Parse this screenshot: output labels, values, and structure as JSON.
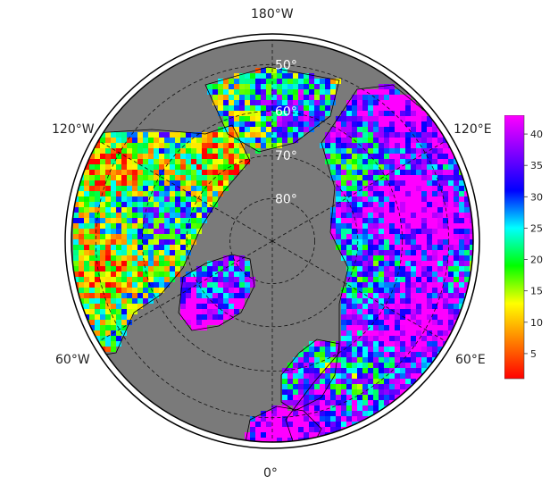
{
  "map": {
    "projection": "north-polar-stereographic",
    "ocean_color": "#7a7a7a",
    "border_color": "#000000",
    "grid_style": "dashed",
    "longitude_labels": {
      "top": "180°W",
      "upper_left": "120°W",
      "upper_right": "120°E",
      "lower_left": "60°W",
      "lower_right": "60°E",
      "bottom": "0°"
    },
    "latitude_labels": [
      "50°",
      "60°",
      "70°",
      "80°"
    ],
    "latitude_circles": [
      50,
      60,
      70,
      80
    ]
  },
  "colorbar": {
    "min": 1,
    "max": 43,
    "tick_values": [
      5,
      10,
      15,
      20,
      25,
      30,
      35,
      40
    ],
    "tick_labels": [
      "5",
      "10",
      "15",
      "20",
      "25",
      "30",
      "35",
      "40"
    ],
    "colors": [
      "#ff0000",
      "#ff8000",
      "#ffff00",
      "#00ff00",
      "#00ffff",
      "#0000ff",
      "#8000ff",
      "#ff00ff"
    ]
  }
}
